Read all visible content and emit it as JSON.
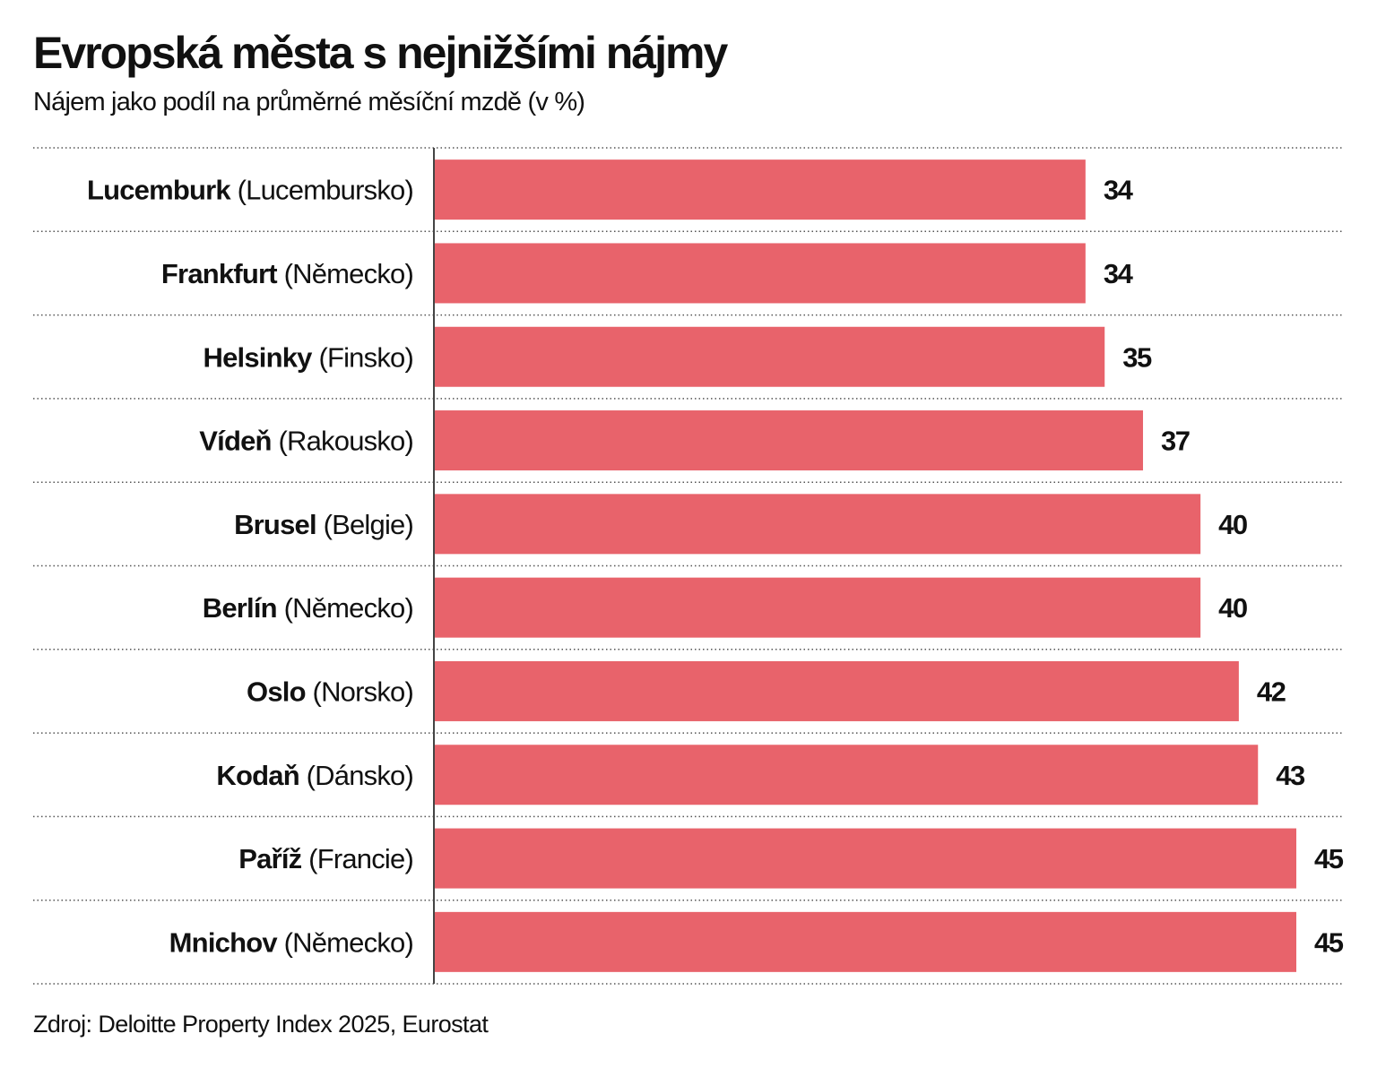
{
  "chart_data": {
    "type": "bar",
    "orientation": "horizontal",
    "title": "Evropská města s nejnižšími nájmy",
    "subtitle": "Nájem jako podíl na průměrné měsíční mzdě (v %)",
    "source": "Zdroj: Deloitte Property Index 2025, Eurostat",
    "categories": [
      {
        "city": "Lucemburk",
        "country": "(Lucembursko)"
      },
      {
        "city": "Frankfurt",
        "country": "(Německo)"
      },
      {
        "city": "Helsinky",
        "country": "(Finsko)"
      },
      {
        "city": "Vídeň",
        "country": "(Rakousko)"
      },
      {
        "city": "Brusel",
        "country": "(Belgie)"
      },
      {
        "city": "Berlín",
        "country": "(Německo)"
      },
      {
        "city": "Oslo",
        "country": "(Norsko)"
      },
      {
        "city": "Kodaň",
        "country": "(Dánsko)"
      },
      {
        "city": "Paříž",
        "country": "(Francie)"
      },
      {
        "city": "Mnichov",
        "country": "(Německo)"
      }
    ],
    "values": [
      34,
      34,
      35,
      37,
      40,
      40,
      42,
      43,
      45,
      45
    ],
    "xlim": [
      0,
      45
    ],
    "grid": "dotted row separators",
    "bar_color": "#e8636b",
    "data_labels": true
  }
}
